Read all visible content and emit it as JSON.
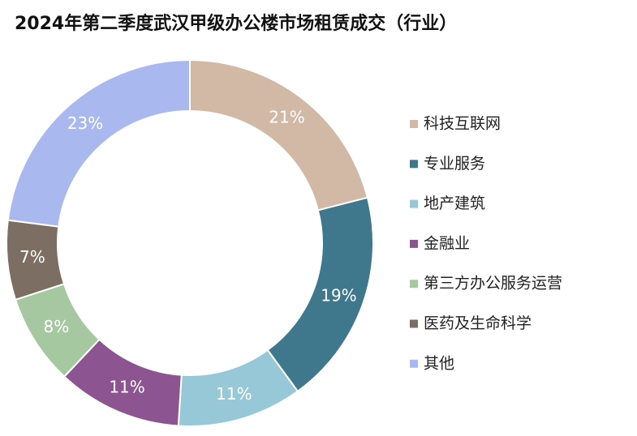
{
  "chart_data": {
    "type": "donut",
    "title": "2024年第二季度武汉甲级办公楼市场租赁成交（行业）",
    "categories": [
      "科技互联网",
      "专业服务",
      "地产建筑",
      "金融业",
      "第三方办公服务运营",
      "医药及生命科学",
      "其他"
    ],
    "values": [
      21,
      19,
      11,
      11,
      8,
      7,
      23
    ],
    "value_labels": [
      "21%",
      "19%",
      "11%",
      "11%",
      "8%",
      "7%",
      "23%"
    ],
    "colors": [
      "#d2b9a6",
      "#3f788c",
      "#96c8d7",
      "#8c5591",
      "#a5c8a0",
      "#7d6e64",
      "#a9b9f0"
    ],
    "legend": "right"
  }
}
